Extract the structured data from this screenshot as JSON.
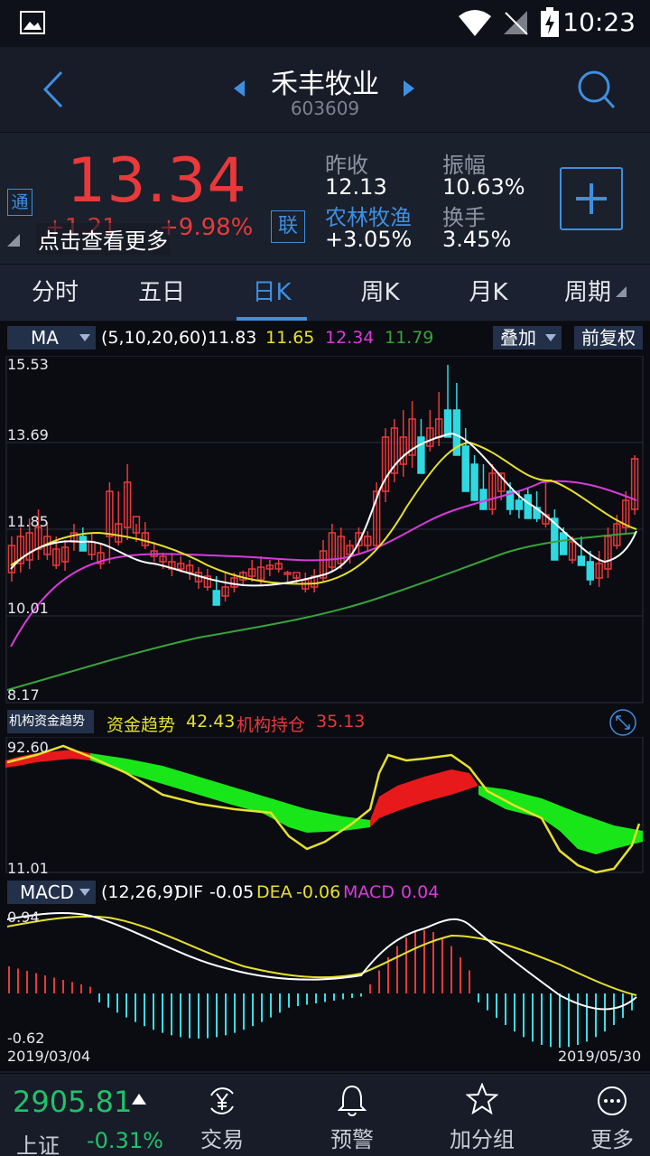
{
  "status_bar": {
    "time": "10:23"
  },
  "header": {
    "name": "禾丰牧业",
    "code": "603609"
  },
  "quote": {
    "price": "13.34",
    "change": "+1.21",
    "change_pct": "+9.98%",
    "tong_badge": "通",
    "lian_badge": "联",
    "more_hint": "点击查看更多",
    "prev_close_label": "昨收",
    "prev_close": "12.13",
    "amplitude_label": "振幅",
    "amplitude": "10.63%",
    "sector_name": "农林牧渔",
    "sector_change": "+3.05%",
    "turnover_label": "换手",
    "turnover": "3.45%",
    "colors": {
      "up": "#e8393b",
      "link": "#3f8fe0"
    }
  },
  "tabs": [
    {
      "label": "分时"
    },
    {
      "label": "五日"
    },
    {
      "label": "日K",
      "active": true
    },
    {
      "label": "周K"
    },
    {
      "label": "月K"
    },
    {
      "label": "周期"
    }
  ],
  "ma_panel": {
    "indicator": "MA",
    "params": "(5,10,20,60)",
    "ma5": "11.83",
    "ma10": "11.65",
    "ma20": "12.34",
    "ma60": "11.79",
    "overlay_button": "叠加",
    "adjust_button": "前复权",
    "y_ticks": [
      "15.53",
      "13.69",
      "11.85",
      "10.01",
      "8.17"
    ],
    "colors": {
      "ma5": "#ffffff",
      "ma10": "#e8e02c",
      "ma20": "#d93bd9",
      "ma60": "#39a33a"
    }
  },
  "fund_panel": {
    "indicator": "机构资金趋势",
    "trend_label": "资金趋势",
    "trend_value": "42.43",
    "holding_label": "机构持仓",
    "holding_value": "35.13",
    "y_ticks": [
      "92.60",
      "11.01"
    ]
  },
  "macd_panel": {
    "indicator": "MACD",
    "params": "(12,26,9)",
    "dif_label": "DIF",
    "dif": "-0.05",
    "dea_label": "DEA",
    "dea": "-0.06",
    "macd_label": "MACD",
    "macd": "0.04",
    "y_ticks": [
      "0.94",
      "-0.62"
    ],
    "start_date": "2019/03/04",
    "end_date": "2019/05/30"
  },
  "bottom_bar": {
    "index_value": "2905.81",
    "index_name": "上证",
    "index_change": "-0.31%",
    "nav": [
      {
        "label": "交易",
        "icon": "yen-cycle-icon"
      },
      {
        "label": "预警",
        "icon": "bell-icon"
      },
      {
        "label": "加分组",
        "icon": "star-icon"
      },
      {
        "label": "更多",
        "icon": "more-icon"
      }
    ]
  }
}
